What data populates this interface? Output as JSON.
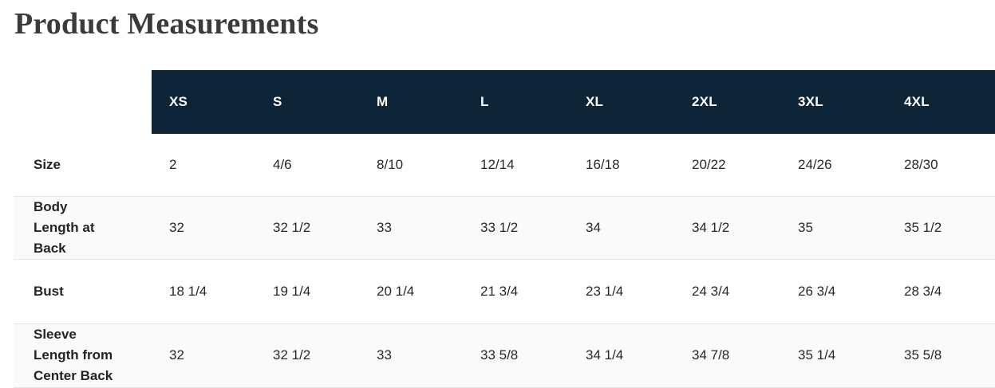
{
  "page": {
    "title": "Product Measurements"
  },
  "colors": {
    "header_bg": "#0e2537",
    "header_text": "#ffffff",
    "row_alt_bg": "#fafafa",
    "row_border": "#e3e3e3",
    "title_text": "#3b3b3b"
  },
  "table": {
    "header": [
      "XS",
      "S",
      "M",
      "L",
      "XL",
      "2XL",
      "3XL",
      "4XL"
    ],
    "rows": [
      {
        "label": "Size",
        "values": [
          "2",
          "4/6",
          "8/10",
          "12/14",
          "16/18",
          "20/22",
          "24/26",
          "28/30"
        ]
      },
      {
        "label": "Body Length at Back",
        "values": [
          "32",
          "32 1/2",
          "33",
          "33 1/2",
          "34",
          "34 1/2",
          "35",
          "35 1/2"
        ]
      },
      {
        "label": "Bust",
        "values": [
          "18 1/4",
          "19 1/4",
          "20 1/4",
          "21 3/4",
          "23 1/4",
          "24 3/4",
          "26 3/4",
          "28 3/4"
        ]
      },
      {
        "label": "Sleeve Length from Center Back",
        "values": [
          "32",
          "32 1/2",
          "33",
          "33 5/8",
          "34 1/4",
          "34 7/8",
          "35 1/4",
          "35 5/8"
        ]
      }
    ]
  }
}
